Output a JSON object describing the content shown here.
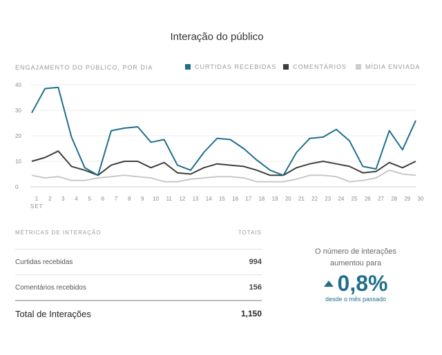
{
  "title": "Interação do público",
  "subtitle": "ENGAJAMENTO DO PÚBLICO, POR DIA",
  "legend": [
    {
      "label": "CURTIDAS RECEBIDAS",
      "color": "#1f6f8b"
    },
    {
      "label": "COMENTÁRIOS",
      "color": "#3d3d3d"
    },
    {
      "label": "MÍDIA ENVIADA",
      "color": "#cccccc"
    }
  ],
  "chart_data": {
    "type": "line",
    "title": "Interação do público",
    "x": [
      1,
      2,
      3,
      4,
      5,
      6,
      7,
      8,
      9,
      10,
      11,
      12,
      13,
      14,
      15,
      16,
      17,
      18,
      19,
      20,
      21,
      22,
      23,
      24,
      25,
      26,
      27,
      28,
      29,
      30
    ],
    "x_month_label": "SET",
    "ylim": [
      0,
      40
    ],
    "yticks": [
      0,
      10,
      20,
      30,
      40
    ],
    "grid": true,
    "series": [
      {
        "name": "CURTIDAS RECEBIDAS",
        "color": "#1f6f8b",
        "values": [
          29,
          38.5,
          39,
          19.5,
          7.5,
          4.5,
          22,
          23,
          23.5,
          17.5,
          18.5,
          8.5,
          6.5,
          13.5,
          19,
          18.5,
          15,
          10.5,
          6.5,
          4.5,
          13.5,
          19,
          19.5,
          22.5,
          18,
          8,
          7,
          22,
          14.5,
          26
        ]
      },
      {
        "name": "COMENTÁRIOS",
        "color": "#3d3d3d",
        "values": [
          10,
          11.5,
          14,
          8,
          6.5,
          4.5,
          8.5,
          10,
          10,
          7.5,
          9.5,
          5.5,
          5,
          7.5,
          9,
          8.5,
          8,
          6.5,
          4.5,
          4.5,
          7.5,
          9,
          10,
          9,
          8,
          5.5,
          6,
          9.5,
          7.5,
          10
        ]
      },
      {
        "name": "MÍDIA ENVIADA",
        "color": "#c8c8c8",
        "values": [
          4.5,
          3.5,
          4,
          2.5,
          2.5,
          3.5,
          4,
          4.5,
          4,
          3.5,
          2,
          2,
          3,
          3.5,
          4,
          4,
          3.5,
          2,
          2,
          2,
          3,
          4.5,
          4.5,
          4,
          2,
          2.5,
          3.5,
          6.5,
          5,
          4.5
        ]
      }
    ]
  },
  "metrics": {
    "header_label": "MÉTRICAS DE INTERAÇÃO",
    "header_value": "TOTAIS",
    "rows": [
      {
        "label": "Curtidas recebidas",
        "value": "994"
      },
      {
        "label": "Comentários recebidos",
        "value": "156"
      }
    ],
    "total_label": "Total de Interações",
    "total_value": "1,150"
  },
  "stat": {
    "text": "O número de interações aumentou para",
    "value": "0,8%",
    "since": "desde o mês passado"
  }
}
